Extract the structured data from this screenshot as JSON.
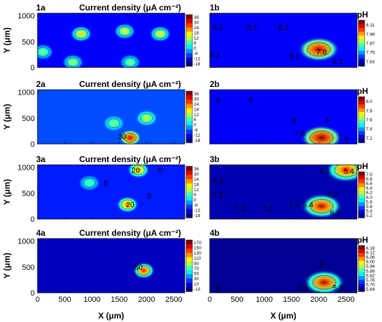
{
  "figure": {
    "xlabel": "X (μm)",
    "ylabel": "Y (μm)",
    "x_ticks": [
      "0",
      "500",
      "1000",
      "1500",
      "2000",
      "2500"
    ],
    "y_ticks": [
      "0",
      "500",
      "1000"
    ]
  },
  "chart_data": [
    {
      "type": "heatmap",
      "panel": "1a",
      "title": "Current density (μA cm⁻²)",
      "xlim": [
        0,
        2700
      ],
      "ylim": [
        0,
        1050
      ],
      "colorbar": {
        "ticks": [
          "36",
          "30",
          "24",
          "18",
          "12",
          "6",
          "0",
          "-6",
          "-12",
          "-18"
        ],
        "min": -18,
        "max": 36
      },
      "hotspots": [
        {
          "x": 800,
          "y": 650,
          "value": 18
        },
        {
          "x": 1600,
          "y": 700,
          "value": 15
        },
        {
          "x": 2250,
          "y": 650,
          "value": 16
        },
        {
          "x": 650,
          "y": 100,
          "value": 12
        },
        {
          "x": 1700,
          "y": 100,
          "value": 10
        },
        {
          "x": 100,
          "y": 300,
          "value": 10
        }
      ],
      "contour_labels": []
    },
    {
      "type": "heatmap",
      "panel": "1b",
      "title": "pH",
      "xlim": [
        0,
        2700
      ],
      "ylim": [
        0,
        1050
      ],
      "colorbar": {
        "ticks": [
          "8.11",
          "7.99",
          "7.87",
          "7.75",
          "7.63"
        ],
        "min": 7.63,
        "max": 8.11
      },
      "hotspots": [
        {
          "x": 2000,
          "y": 350,
          "value": 7.65
        }
      ],
      "contour_labels": [
        {
          "x": 150,
          "y": 780,
          "text": "8.1"
        },
        {
          "x": 780,
          "y": 780,
          "text": "8.1"
        },
        {
          "x": 1350,
          "y": 780,
          "text": "8.1"
        },
        {
          "x": 100,
          "y": 250,
          "text": "8.1"
        },
        {
          "x": 1550,
          "y": 220,
          "text": "8.1"
        },
        {
          "x": 2050,
          "y": 300,
          "text": "7.8"
        },
        {
          "x": 2350,
          "y": 120,
          "text": "8.1"
        }
      ]
    },
    {
      "type": "heatmap",
      "panel": "2a",
      "title": "Current density (μA cm⁻²)",
      "xlim": [
        0,
        2700
      ],
      "ylim": [
        0,
        1050
      ],
      "colorbar": {
        "ticks": [
          "36",
          "30",
          "24",
          "18",
          "12",
          "6",
          "0",
          "-6",
          "-12",
          "-18"
        ],
        "min": -18,
        "max": 36
      },
      "hotspots": [
        {
          "x": 1700,
          "y": 120,
          "value": 32
        },
        {
          "x": 2000,
          "y": 500,
          "value": 14
        },
        {
          "x": 1400,
          "y": 400,
          "value": 10
        }
      ],
      "contour_labels": [
        {
          "x": 1550,
          "y": 150,
          "text": "30"
        }
      ]
    },
    {
      "type": "heatmap",
      "panel": "2b",
      "title": "pH",
      "xlim": [
        0,
        2700
      ],
      "ylim": [
        0,
        1050
      ],
      "colorbar": {
        "ticks": [
          "8.0",
          "7.8",
          "7.6",
          "7.4",
          "7.2"
        ],
        "min": 7.2,
        "max": 8.0
      },
      "hotspots": [
        {
          "x": 2050,
          "y": 120,
          "value": 7.2
        }
      ],
      "contour_labels": [
        {
          "x": 150,
          "y": 850,
          "text": "8"
        },
        {
          "x": 750,
          "y": 850,
          "text": "8"
        },
        {
          "x": 1550,
          "y": 450,
          "text": "8"
        },
        {
          "x": 2150,
          "y": 470,
          "text": "8"
        },
        {
          "x": 1650,
          "y": 200,
          "text": "7.6"
        },
        {
          "x": 2450,
          "y": 120,
          "text": "7.6"
        }
      ]
    },
    {
      "type": "heatmap",
      "panel": "3a",
      "title": "Current density (μA cm⁻²)",
      "xlim": [
        0,
        2700
      ],
      "ylim": [
        0,
        1050
      ],
      "colorbar": {
        "ticks": [
          "36",
          "30",
          "24",
          "18",
          "12",
          "6",
          "0",
          "-6",
          "-12",
          "-18"
        ],
        "min": -18,
        "max": 36
      },
      "hotspots": [
        {
          "x": 1850,
          "y": 950,
          "value": 22
        },
        {
          "x": 1650,
          "y": 280,
          "value": 24
        },
        {
          "x": 950,
          "y": 700,
          "value": 8
        }
      ],
      "contour_labels": [
        {
          "x": 1800,
          "y": 950,
          "text": "20"
        },
        {
          "x": 2250,
          "y": 950,
          "text": "0"
        },
        {
          "x": 1250,
          "y": 700,
          "text": "0"
        },
        {
          "x": 1700,
          "y": 280,
          "text": "20"
        },
        {
          "x": 2050,
          "y": 450,
          "text": "0"
        }
      ]
    },
    {
      "type": "heatmap",
      "panel": "3b",
      "title": "pH",
      "xlim": [
        0,
        2700
      ],
      "ylim": [
        0,
        1050
      ],
      "colorbar": {
        "ticks": [
          "7.0",
          "6.8",
          "6.6",
          "6.4",
          "6.2",
          "6.0",
          "5.8",
          "5.6",
          "5.4",
          "5.2"
        ],
        "min": 5.2,
        "max": 7.0
      },
      "hotspots": [
        {
          "x": 2500,
          "y": 950,
          "value": 5.4
        },
        {
          "x": 2050,
          "y": 250,
          "value": 5.3
        }
      ],
      "contour_labels": [
        {
          "x": 2100,
          "y": 930,
          "text": "6.3"
        },
        {
          "x": 2550,
          "y": 930,
          "text": "5.4"
        },
        {
          "x": 150,
          "y": 750,
          "text": "6.3"
        },
        {
          "x": 150,
          "y": 480,
          "text": "7.2"
        },
        {
          "x": 2250,
          "y": 480,
          "text": "7.2"
        },
        {
          "x": 550,
          "y": 200,
          "text": "7.2"
        },
        {
          "x": 1050,
          "y": 200,
          "text": "7.2"
        },
        {
          "x": 1550,
          "y": 300,
          "text": "7.2"
        },
        {
          "x": 1800,
          "y": 280,
          "text": "5.4"
        },
        {
          "x": 2300,
          "y": 120,
          "text": "6.3"
        }
      ]
    },
    {
      "type": "heatmap",
      "panel": "4a",
      "title": "Current density (μA cm⁻²)",
      "xlim": [
        0,
        2700
      ],
      "ylim": [
        0,
        1050
      ],
      "colorbar": {
        "ticks": [
          "170",
          "150",
          "130",
          "110",
          "90",
          "70",
          "50",
          "30",
          "10",
          "-10"
        ],
        "min": -10,
        "max": 170
      },
      "hotspots": [
        {
          "x": 1950,
          "y": 430,
          "value": 150
        }
      ],
      "contour_labels": [
        {
          "x": 1850,
          "y": 500,
          "text": "80"
        }
      ]
    },
    {
      "type": "heatmap",
      "panel": "4b",
      "title": "pH",
      "xlim": [
        0,
        2700
      ],
      "ylim": [
        0,
        1050
      ],
      "colorbar": {
        "ticks": [
          "6.18",
          "6.12",
          "6.06",
          "6.00",
          "5.94",
          "5.88",
          "5.82",
          "5.76",
          "5.70",
          "5.64"
        ],
        "min": 5.64,
        "max": 6.18
      },
      "hotspots": [
        {
          "x": 2100,
          "y": 200,
          "value": 5.66
        }
      ],
      "contour_labels": [
        {
          "x": 2050,
          "y": 550,
          "text": "6"
        },
        {
          "x": 150,
          "y": 100,
          "text": "6"
        },
        {
          "x": 1700,
          "y": 100,
          "text": "5.6"
        },
        {
          "x": 2350,
          "y": 100,
          "text": "5.8"
        }
      ]
    }
  ]
}
